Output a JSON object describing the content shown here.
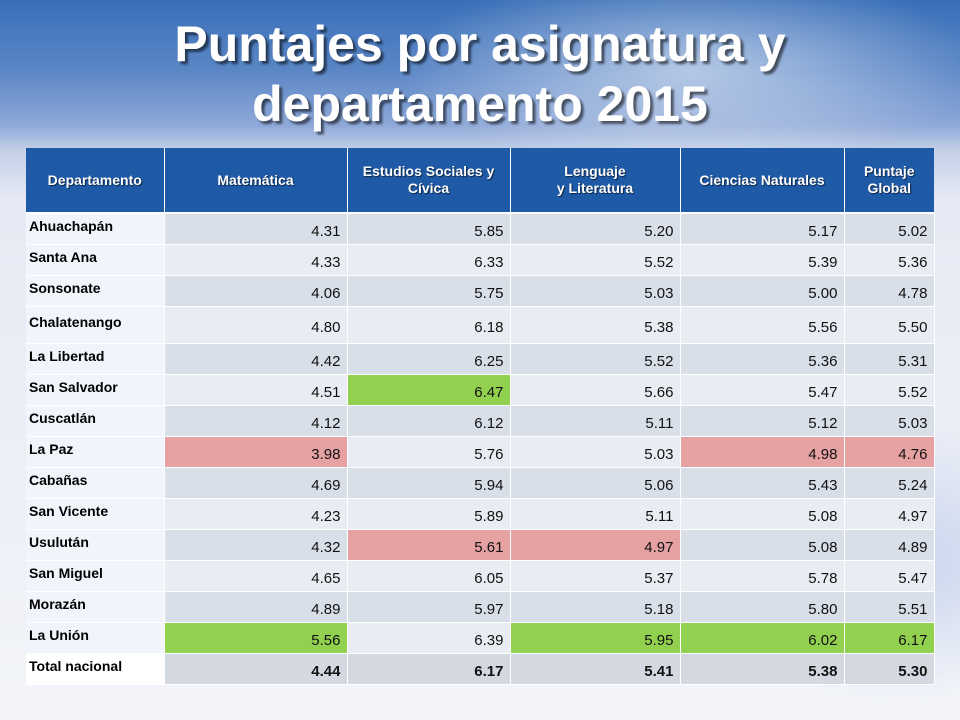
{
  "title": "Puntajes por asignatura y departamento 2015",
  "title_lines": [
    "Puntajes por asignatura y",
    "departamento 2015"
  ],
  "colors": {
    "header": "#1f5aa6",
    "highlight_high": "#92d050",
    "highlight_low": "#e6a1a2"
  },
  "table": {
    "headers": [
      "Departamento",
      "Matemática",
      "Estudios Sociales y Cívica",
      "Lenguaje y Literatura",
      "Ciencias Naturales",
      "Puntaje Global"
    ],
    "rows": [
      {
        "departamento": "Ahuachapán",
        "values": [
          "4.31",
          "5.85",
          "5.20",
          "5.17",
          "5.02"
        ],
        "highlight": [
          "",
          "",
          "",
          "",
          ""
        ]
      },
      {
        "departamento": "Santa Ana",
        "values": [
          "4.33",
          "6.33",
          "5.52",
          "5.39",
          "5.36"
        ],
        "highlight": [
          "",
          "",
          "",
          "",
          ""
        ]
      },
      {
        "departamento": "Sonsonate",
        "values": [
          "4.06",
          "5.75",
          "5.03",
          "5.00",
          "4.78"
        ],
        "highlight": [
          "",
          "",
          "",
          "",
          ""
        ]
      },
      {
        "departamento": "Chalatenango",
        "values": [
          "4.80",
          "6.18",
          "5.38",
          "5.56",
          "5.50"
        ],
        "highlight": [
          "",
          "",
          "",
          "",
          ""
        ]
      },
      {
        "departamento": "La Libertad",
        "values": [
          "4.42",
          "6.25",
          "5.52",
          "5.36",
          "5.31"
        ],
        "highlight": [
          "",
          "",
          "",
          "",
          ""
        ]
      },
      {
        "departamento": "San Salvador",
        "values": [
          "4.51",
          "6.47",
          "5.66",
          "5.47",
          "5.52"
        ],
        "highlight": [
          "",
          "high",
          "",
          "",
          ""
        ]
      },
      {
        "departamento": "Cuscatlán",
        "values": [
          "4.12",
          "6.12",
          "5.11",
          "5.12",
          "5.03"
        ],
        "highlight": [
          "",
          "",
          "",
          "",
          ""
        ]
      },
      {
        "departamento": "La Paz",
        "values": [
          "3.98",
          "5.76",
          "5.03",
          "4.98",
          "4.76"
        ],
        "highlight": [
          "low",
          "",
          "",
          "low",
          "low"
        ]
      },
      {
        "departamento": "Cabañas",
        "values": [
          "4.69",
          "5.94",
          "5.06",
          "5.43",
          "5.24"
        ],
        "highlight": [
          "",
          "",
          "",
          "",
          ""
        ]
      },
      {
        "departamento": "San Vicente",
        "values": [
          "4.23",
          "5.89",
          "5.11",
          "5.08",
          "4.97"
        ],
        "highlight": [
          "",
          "",
          "",
          "",
          ""
        ]
      },
      {
        "departamento": "Usulután",
        "values": [
          "4.32",
          "5.61",
          "4.97",
          "5.08",
          "4.89"
        ],
        "highlight": [
          "",
          "low",
          "low",
          "",
          ""
        ]
      },
      {
        "departamento": "San Miguel",
        "values": [
          "4.65",
          "6.05",
          "5.37",
          "5.78",
          "5.47"
        ],
        "highlight": [
          "",
          "",
          "",
          "",
          ""
        ]
      },
      {
        "departamento": "Morazán",
        "values": [
          "4.89",
          "5.97",
          "5.18",
          "5.80",
          "5.51"
        ],
        "highlight": [
          "",
          "",
          "",
          "",
          ""
        ]
      },
      {
        "departamento": "La Unión",
        "values": [
          "5.56",
          "6.39",
          "5.95",
          "6.02",
          "6.17"
        ],
        "highlight": [
          "high",
          "",
          "high",
          "high",
          "high"
        ]
      }
    ],
    "total": {
      "departamento": "Total nacional",
      "values": [
        "4.44",
        "6.17",
        "5.41",
        "5.38",
        "5.30"
      ]
    }
  }
}
